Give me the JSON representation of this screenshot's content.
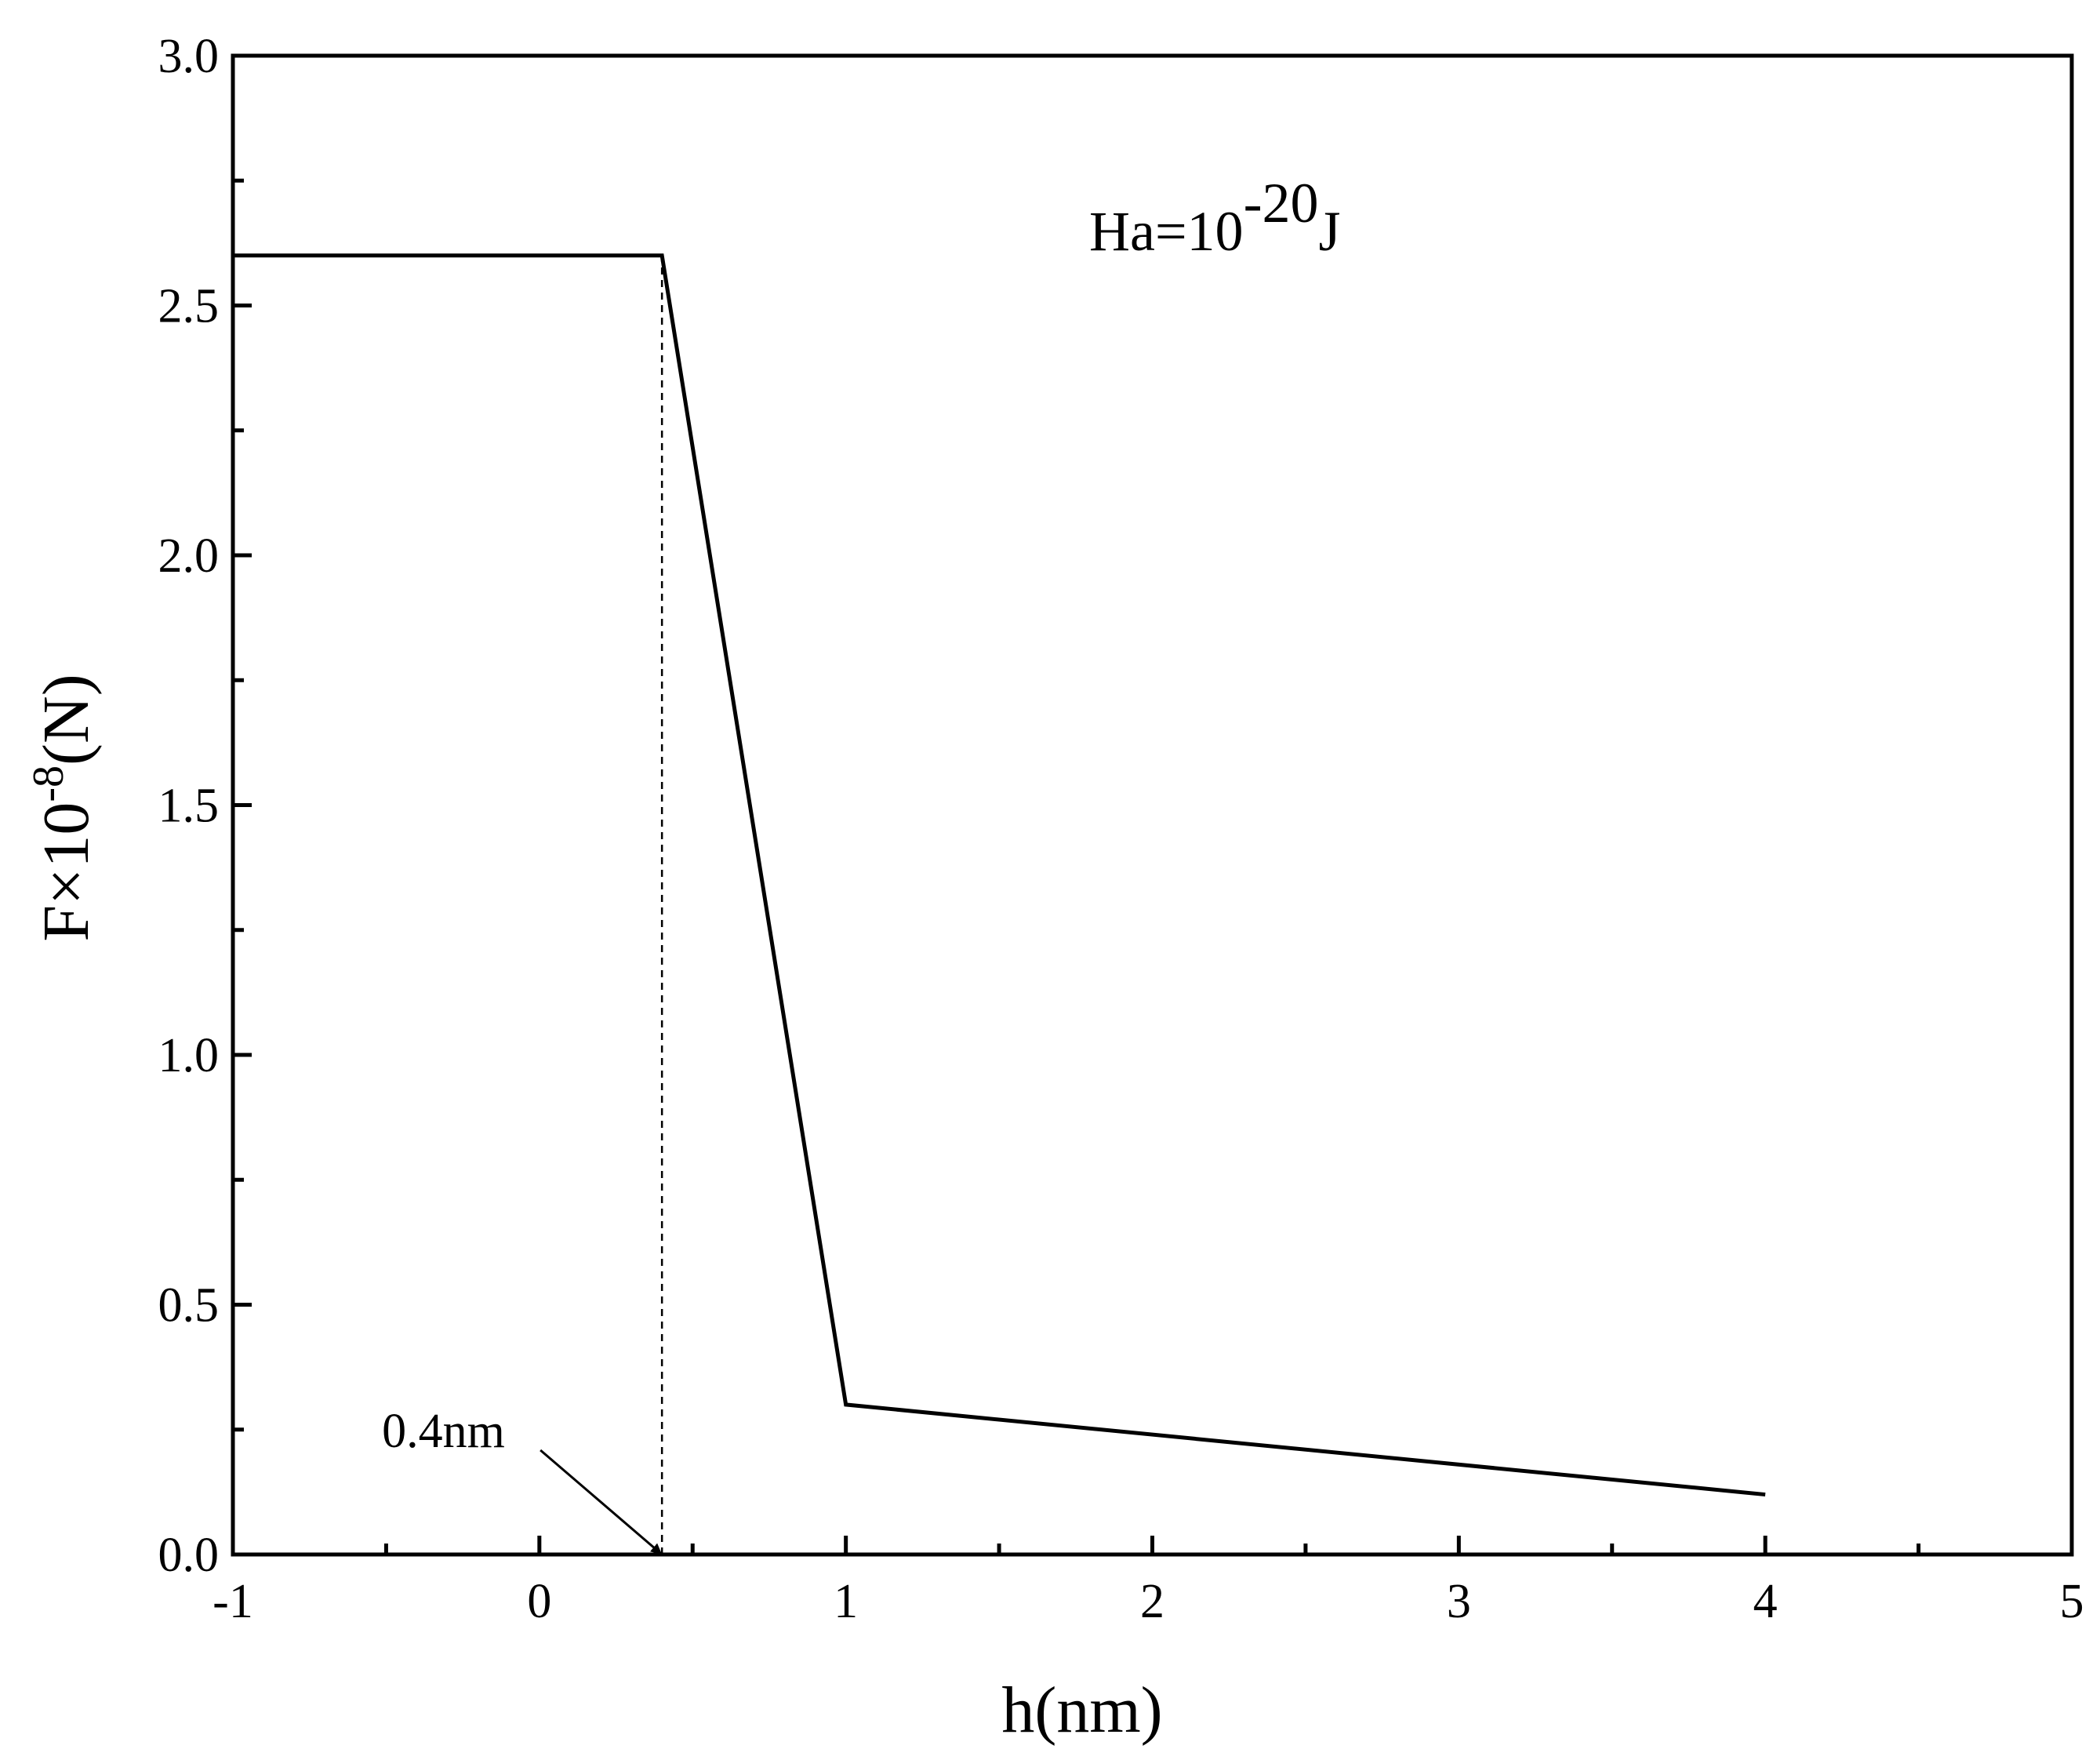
{
  "chart_data": {
    "type": "line",
    "x_label": "h(nm)",
    "y_label": [
      "F×10",
      "-8",
      "(N)"
    ],
    "series": [
      {
        "color": "#000000",
        "x": [
          -1,
          0.4,
          1,
          4
        ],
        "values": [
          2.6,
          2.6,
          0.3,
          0.12
        ]
      }
    ],
    "xlim": [
      -1,
      5
    ],
    "xticks": [
      -1,
      0,
      1,
      2,
      3,
      4,
      5
    ],
    "xminor_ticks": [
      -0.5,
      0.5,
      1.5,
      2.5,
      3.5,
      4.5
    ],
    "ylim": [
      0,
      3
    ],
    "yticks": [
      {
        "value": 0,
        "label": "0.0"
      },
      {
        "value": 0.5,
        "label": "0.5"
      },
      {
        "value": 1,
        "label": "1.0"
      },
      {
        "value": 1.5,
        "label": "1.5"
      },
      {
        "value": 2,
        "label": "2.0"
      },
      {
        "value": 2.5,
        "label": "2.5"
      },
      {
        "value": 3,
        "label": "3.0"
      }
    ],
    "yminor_ticks": [
      0.25,
      0.75,
      1.25,
      1.75,
      2.25,
      2.75
    ],
    "dashed_line": {
      "x": 0.4,
      "y": [
        0,
        2.6
      ]
    },
    "annotations": [
      {
        "text": "0.4nm",
        "x": 0.4,
        "y": 0
      }
    ],
    "label": [
      "Ha=10",
      "-20",
      "J"
    ],
    "grid": false
  }
}
